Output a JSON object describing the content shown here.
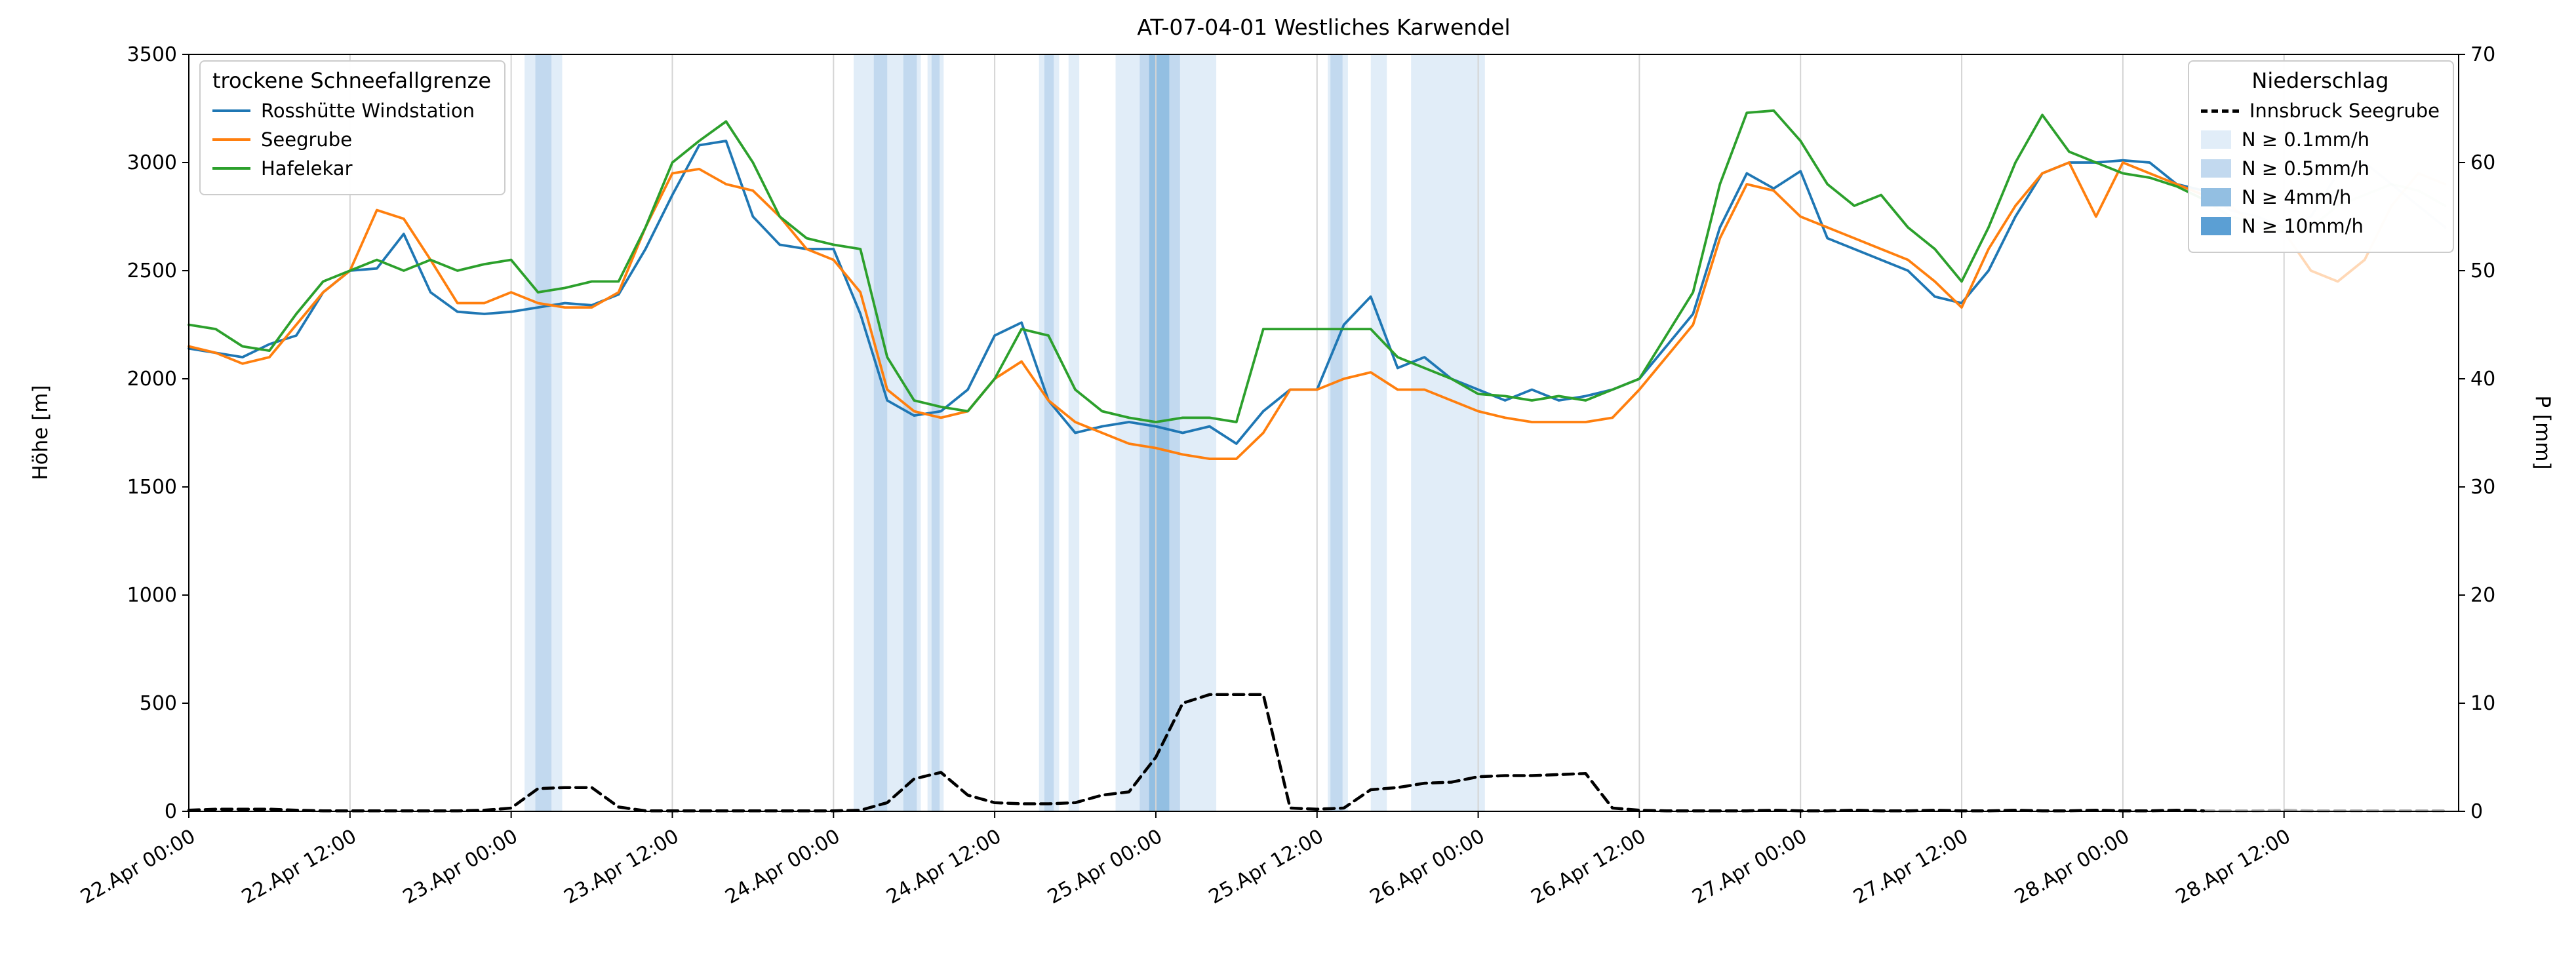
{
  "chart_data": {
    "type": "line",
    "title": "AT-07-04-01 Westliches Karwendel",
    "ylabel_left": "Höhe [m]",
    "ylabel_right": "P [mm]",
    "ylim_left": [
      0,
      3500
    ],
    "ylim_right": [
      0,
      70
    ],
    "yticks_left": [
      0,
      500,
      1000,
      1500,
      2000,
      2500,
      3000,
      3500
    ],
    "yticks_right": [
      0,
      10,
      20,
      30,
      40,
      50,
      60,
      70
    ],
    "grid": "vertical-only",
    "legend_positions": {
      "snowline": "upper-left",
      "precip": "upper-right"
    },
    "x_unit": "hours since 22.Apr 00:00",
    "xlim_hours": [
      0,
      169
    ],
    "x_tick_hours": [
      0,
      12,
      24,
      36,
      48,
      60,
      72,
      84,
      96,
      108,
      120,
      132,
      144,
      156
    ],
    "x_tick_labels": [
      "22.Apr 00:00",
      "22.Apr 12:00",
      "23.Apr 00:00",
      "23.Apr 12:00",
      "24.Apr 00:00",
      "24.Apr 12:00",
      "25.Apr 00:00",
      "25.Apr 12:00",
      "26.Apr 00:00",
      "26.Apr 12:00",
      "27.Apr 00:00",
      "27.Apr 12:00",
      "28.Apr 00:00",
      "28.Apr 12:00"
    ],
    "forecast_fade_start_hour": 150,
    "x_hours": [
      0,
      2,
      4,
      6,
      8,
      10,
      12,
      14,
      16,
      18,
      20,
      22,
      24,
      26,
      28,
      30,
      32,
      34,
      36,
      38,
      40,
      42,
      44,
      46,
      48,
      50,
      52,
      54,
      56,
      58,
      60,
      62,
      64,
      66,
      68,
      70,
      72,
      74,
      76,
      78,
      80,
      82,
      84,
      86,
      88,
      90,
      92,
      94,
      96,
      98,
      100,
      102,
      104,
      106,
      108,
      110,
      112,
      114,
      116,
      118,
      120,
      122,
      124,
      126,
      128,
      130,
      132,
      134,
      136,
      138,
      140,
      142,
      144,
      146,
      148,
      150,
      152,
      154,
      156,
      158,
      160,
      162,
      164,
      166,
      168
    ],
    "series": [
      {
        "name": "Rosshütte Windstation",
        "color": "#1f77b4",
        "style": "solid",
        "axis": "left",
        "values": [
          2140,
          2120,
          2100,
          2160,
          2200,
          2400,
          2500,
          2510,
          2670,
          2400,
          2310,
          2300,
          2310,
          2330,
          2350,
          2340,
          2390,
          2600,
          2850,
          3080,
          3100,
          2750,
          2620,
          2600,
          2600,
          2300,
          1900,
          1830,
          1850,
          1950,
          2200,
          2260,
          1900,
          1750,
          1780,
          1800,
          1780,
          1750,
          1780,
          1700,
          1850,
          1950,
          1950,
          2250,
          2380,
          2050,
          2100,
          2000,
          1950,
          1900,
          1950,
          1900,
          1920,
          1950,
          2000,
          2150,
          2300,
          2700,
          2950,
          2880,
          2960,
          2650,
          2600,
          2550,
          2500,
          2380,
          2350,
          2500,
          2750,
          2950,
          3000,
          3000,
          3010,
          3000,
          2900,
          2870,
          2780,
          2750,
          2700,
          2750,
          2950,
          3000,
          2900,
          2800,
          2700
        ]
      },
      {
        "name": "Seegrube",
        "color": "#ff7f0e",
        "style": "solid",
        "axis": "left",
        "values": [
          2150,
          2120,
          2070,
          2100,
          2250,
          2400,
          2500,
          2780,
          2740,
          2550,
          2350,
          2350,
          2400,
          2350,
          2330,
          2330,
          2400,
          2700,
          2950,
          2970,
          2900,
          2870,
          2750,
          2600,
          2550,
          2400,
          1950,
          1850,
          1820,
          1850,
          2000,
          2080,
          1900,
          1800,
          1750,
          1700,
          1680,
          1650,
          1630,
          1630,
          1750,
          1950,
          1950,
          2000,
          2030,
          1950,
          1950,
          1900,
          1850,
          1820,
          1800,
          1800,
          1800,
          1820,
          1950,
          2100,
          2250,
          2650,
          2900,
          2870,
          2750,
          2700,
          2650,
          2600,
          2550,
          2450,
          2330,
          2600,
          2800,
          2950,
          3000,
          2750,
          3000,
          2950,
          2900,
          2850,
          2800,
          2700,
          2680,
          2500,
          2450,
          2550,
          2800,
          2950,
          2900
        ]
      },
      {
        "name": "Hafelekar",
        "color": "#2ca02c",
        "style": "solid",
        "axis": "left",
        "values": [
          2250,
          2230,
          2150,
          2130,
          2300,
          2450,
          2500,
          2550,
          2500,
          2550,
          2500,
          2530,
          2550,
          2400,
          2420,
          2450,
          2450,
          2700,
          3000,
          3100,
          3190,
          3000,
          2750,
          2650,
          2620,
          2600,
          2100,
          1900,
          1870,
          1850,
          2000,
          2230,
          2200,
          1950,
          1850,
          1820,
          1800,
          1820,
          1820,
          1800,
          2230,
          2230,
          2230,
          2230,
          2230,
          2100,
          2050,
          2000,
          1930,
          1920,
          1900,
          1920,
          1900,
          1950,
          2000,
          2200,
          2400,
          2900,
          3230,
          3240,
          3100,
          2900,
          2800,
          2850,
          2700,
          2600,
          2450,
          2700,
          3000,
          3220,
          3050,
          3000,
          2950,
          2930,
          2890,
          2830,
          2750,
          2720,
          2680,
          2700,
          2800,
          2850,
          2900,
          2870,
          2800
        ]
      },
      {
        "name": "Innsbruck Seegrube",
        "color": "#000000",
        "style": "dashed",
        "axis": "right",
        "values": [
          0.1,
          0.2,
          0.2,
          0.2,
          0.1,
          0.05,
          0.05,
          0.05,
          0.05,
          0.05,
          0.05,
          0.1,
          0.3,
          2.1,
          2.2,
          2.2,
          0.4,
          0.05,
          0.05,
          0.05,
          0.05,
          0.05,
          0.05,
          0.05,
          0.05,
          0.1,
          0.8,
          3.0,
          3.6,
          1.5,
          0.8,
          0.7,
          0.7,
          0.8,
          1.5,
          1.8,
          5.0,
          10.0,
          10.8,
          10.8,
          10.8,
          0.3,
          0.2,
          0.3,
          2.0,
          2.2,
          2.6,
          2.7,
          3.2,
          3.3,
          3.3,
          3.4,
          3.5,
          0.3,
          0.1,
          0.05,
          0.05,
          0.05,
          0.05,
          0.1,
          0.05,
          0.05,
          0.1,
          0.05,
          0.05,
          0.1,
          0.05,
          0.05,
          0.1,
          0.05,
          0.05,
          0.1,
          0.05,
          0.05,
          0.1,
          0.05,
          0.05,
          0.05,
          0.1,
          0.05,
          0.05,
          0.05,
          0.05,
          0.05,
          0.05
        ]
      }
    ],
    "precip_bands": {
      "levels": [
        {
          "label": "N ≥ 0.1mm/h",
          "color": "#e1edf8"
        },
        {
          "label": "N ≥ 0.5mm/h",
          "color": "#c2d9ef"
        },
        {
          "label": "N ≥ 4mm/h",
          "color": "#93bfe2"
        },
        {
          "label": "N ≥ 10mm/h",
          "color": "#5b9fd4"
        }
      ],
      "spans": [
        [
          25.0,
          27.8,
          1
        ],
        [
          25.8,
          27.0,
          2
        ],
        [
          49.5,
          54.5,
          1
        ],
        [
          51.0,
          52.0,
          2
        ],
        [
          53.2,
          54.2,
          2
        ],
        [
          55.0,
          56.2,
          1
        ],
        [
          55.3,
          55.9,
          2
        ],
        [
          63.3,
          64.8,
          1
        ],
        [
          63.7,
          64.4,
          2
        ],
        [
          65.5,
          66.3,
          1
        ],
        [
          69.0,
          76.5,
          1
        ],
        [
          70.8,
          73.8,
          2
        ],
        [
          71.5,
          73.0,
          3
        ],
        [
          84.8,
          86.3,
          1
        ],
        [
          85.0,
          85.9,
          2
        ],
        [
          88.0,
          89.2,
          1
        ],
        [
          91.0,
          96.5,
          1
        ]
      ]
    }
  },
  "legends": {
    "snowline": {
      "title": "trockene Schneefallgrenze",
      "items": [
        "Rosshütte Windstation",
        "Seegrube",
        "Hafelekar"
      ]
    },
    "precip": {
      "title": "Niederschlag",
      "line_item": "Innsbruck Seegrube",
      "patch_items": [
        "N ≥ 0.1mm/h",
        "N ≥ 0.5mm/h",
        "N ≥ 4mm/h",
        "N ≥ 10mm/h"
      ]
    }
  }
}
